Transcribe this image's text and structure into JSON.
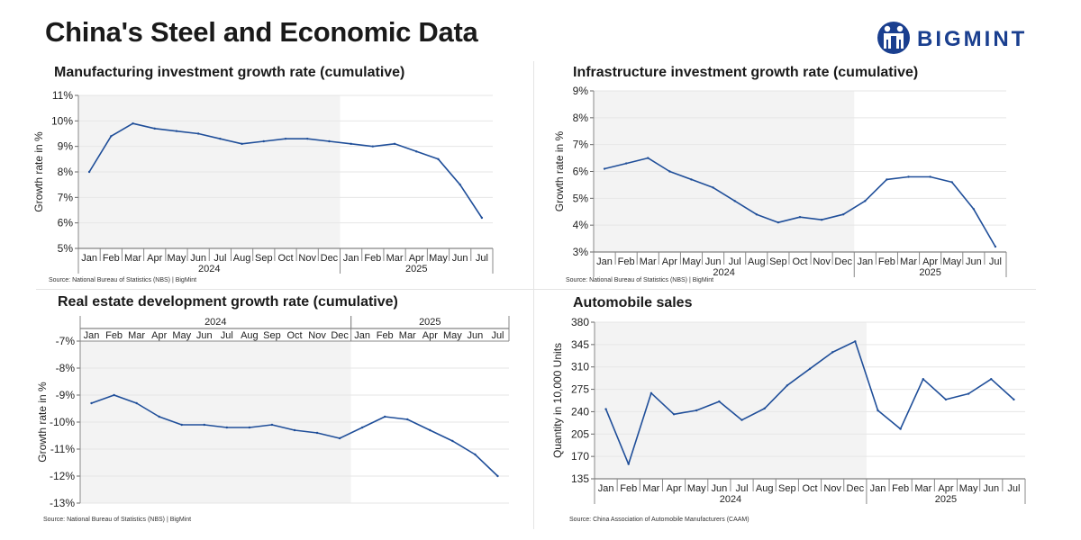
{
  "page_title": "China's Steel and Economic Data",
  "brand": {
    "name": "BIGMINT",
    "color": "#1a3f8f"
  },
  "colors": {
    "line": "#1f4e99",
    "shade": "#f3f3f3",
    "grid": "#e6e6e6"
  },
  "month_labels_2024": [
    "Jan",
    "Feb",
    "Mar",
    "Apr",
    "May",
    "Jun",
    "Jul",
    "Aug",
    "Sep",
    "Oct",
    "Nov",
    "Dec"
  ],
  "month_labels_2025": [
    "Jan",
    "Feb",
    "Mar",
    "Apr",
    "May",
    "Jun",
    "Jul"
  ],
  "year_labels": [
    "2024",
    "2025"
  ],
  "chart_data": [
    {
      "type": "line",
      "title": "Manufacturing investment growth rate (cumulative)",
      "ylabel": "Growth rate in %",
      "ylim": [
        5,
        11
      ],
      "ytick_labels": [
        "5%",
        "6%",
        "7%",
        "8%",
        "9%",
        "10%",
        "11%"
      ],
      "values": [
        8.0,
        9.4,
        9.9,
        9.7,
        9.6,
        9.5,
        9.3,
        9.1,
        9.2,
        9.3,
        9.3,
        9.2,
        9.1,
        9.0,
        9.1,
        8.8,
        8.5,
        7.5,
        6.2
      ],
      "source": "Source: National Bureau of Statistics (NBS) | BigMint"
    },
    {
      "type": "line",
      "title": "Infrastructure investment growth rate (cumulative)",
      "ylabel": "Growth rate in %",
      "ylim": [
        3,
        9
      ],
      "ytick_labels": [
        "3%",
        "4%",
        "5%",
        "6%",
        "7%",
        "8%",
        "9%"
      ],
      "values": [
        6.1,
        6.3,
        6.5,
        6.0,
        5.7,
        5.4,
        4.9,
        4.4,
        4.1,
        4.3,
        4.2,
        4.4,
        4.9,
        5.7,
        5.8,
        5.8,
        5.6,
        4.6,
        3.2
      ],
      "source": "Source: National Bureau of Statistics (NBS) | BigMint"
    },
    {
      "type": "line",
      "title": "Real estate development growth rate (cumulative)",
      "ylabel": "Growth rate in %",
      "ylim": [
        -13,
        -7
      ],
      "ytick_labels": [
        "-13%",
        "-12%",
        "-11%",
        "-10%",
        "-9%",
        "-8%",
        "-7%"
      ],
      "values": [
        -9.3,
        -9.0,
        -9.3,
        -9.8,
        -10.1,
        -10.1,
        -10.2,
        -10.2,
        -10.1,
        -10.3,
        -10.4,
        -10.6,
        -10.2,
        -9.8,
        -9.9,
        -10.3,
        -10.7,
        -11.2,
        -12.0
      ],
      "source": "Source: National Bureau of Statistics (NBS) | BigMint"
    },
    {
      "type": "line",
      "title": "Automobile sales",
      "ylabel": "Quantity in 10,000 Units",
      "ylim": [
        135,
        380
      ],
      "ytick_labels": [
        "135",
        "170",
        "205",
        "240",
        "275",
        "310",
        "345",
        "380"
      ],
      "values": [
        244,
        158,
        269,
        236,
        242,
        256,
        227,
        245,
        281,
        307,
        333,
        350,
        242,
        213,
        291,
        259,
        268,
        291,
        259
      ],
      "source": "Source: China Association of Automobile Manufacturers (CAAM)"
    }
  ]
}
